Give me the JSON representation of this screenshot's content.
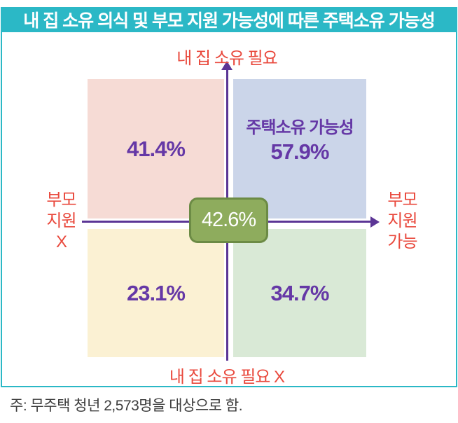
{
  "title": "내 집 소유 의식 및 부모 지원 가능성에 따른 주택소유 가능성",
  "axes": {
    "top": "내 집 소유 필요",
    "bottom": "내 집 소유 필요 X",
    "left": "부모\n지원\nX",
    "right": "부모\n지원\n가능"
  },
  "quadrants": {
    "top_left": {
      "value": "41.4%"
    },
    "top_right": {
      "label": "주택소유 가능성",
      "value": "57.9%"
    },
    "bottom_left": {
      "value": "23.1%"
    },
    "bottom_right": {
      "value": "34.7%"
    }
  },
  "center": {
    "value": "42.6%"
  },
  "note": "주: 무주택 청년 2,573명을 대상으로 함.",
  "colors": {
    "frame_teal": "#2BB8C6",
    "axis_purple": "#5B3595",
    "value_purple": "#6538A6",
    "label_red": "#E9493D",
    "quad_top_left_pink": "#F6DBD5",
    "quad_top_right_blue": "#CBD5E9",
    "quad_bottom_left_cream": "#FBF1D3",
    "quad_bottom_right_green": "#D9E9D6",
    "center_badge_green": "#8EAC5D",
    "center_badge_border": "#6C8B45"
  },
  "chart_data": {
    "type": "table",
    "title": "내 집 소유 의식 및 부모 지원 가능성에 따른 주택소유 가능성",
    "x_axis": {
      "positive": "부모 지원 가능",
      "negative": "부모 지원 X"
    },
    "y_axis": {
      "positive": "내 집 소유 필요",
      "negative": "내 집 소유 필요 X"
    },
    "quadrants": [
      {
        "position": "top-left",
        "x": "부모 지원 X",
        "y": "내 집 소유 필요",
        "value_pct": 41.4
      },
      {
        "position": "top-right",
        "x": "부모 지원 가능",
        "y": "내 집 소유 필요",
        "label": "주택소유 가능성",
        "value_pct": 57.9
      },
      {
        "position": "bottom-left",
        "x": "부모 지원 X",
        "y": "내 집 소유 필요 X",
        "value_pct": 23.1
      },
      {
        "position": "bottom-right",
        "x": "부모 지원 가능",
        "y": "내 집 소유 필요 X",
        "value_pct": 34.7
      }
    ],
    "center_value_pct": 42.6,
    "note": "주: 무주택 청년 2,573명을 대상으로 함."
  }
}
